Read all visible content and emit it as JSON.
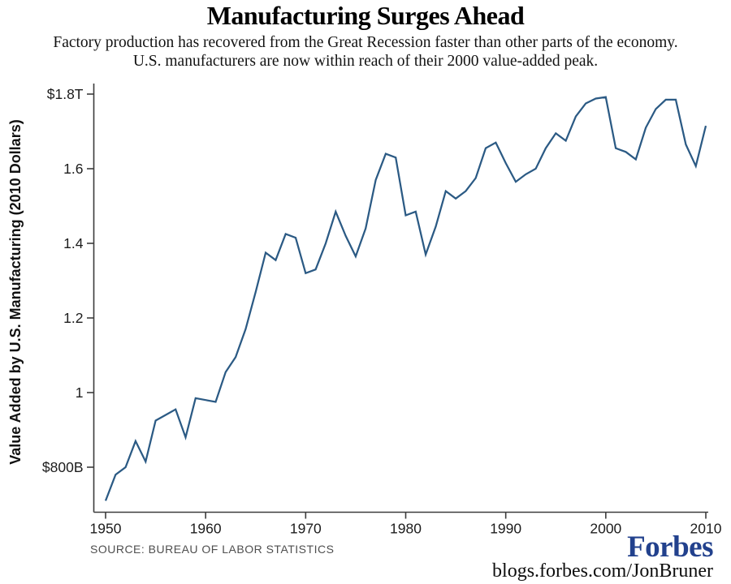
{
  "header": {
    "title": "Manufacturing Surges Ahead",
    "subtitle_line1": "Factory production has recovered from the Great Recession faster than other parts of the economy.",
    "subtitle_line2": "U.S. manufacturers are now within reach of their 2000 value-added peak."
  },
  "chart_data": {
    "type": "line",
    "title": "Manufacturing Surges Ahead",
    "xlabel": "",
    "ylabel": "Value Added by U.S. Manufacturing (2010 Dollars)",
    "units": "trillions of 2010 dollars",
    "grid": false,
    "legend": "none",
    "xlim": [
      1950,
      2010
    ],
    "ylim": [
      0.68,
      1.83
    ],
    "x_ticks": [
      1950,
      1960,
      1970,
      1980,
      1990,
      2000,
      2010
    ],
    "y_ticks": [
      {
        "value": 0.8,
        "label": "$800B"
      },
      {
        "value": 1.0,
        "label": "1"
      },
      {
        "value": 1.2,
        "label": "1.2"
      },
      {
        "value": 1.4,
        "label": "1.4"
      },
      {
        "value": 1.6,
        "label": "1.6"
      },
      {
        "value": 1.8,
        "label": "$1.8T"
      }
    ],
    "x": [
      1950,
      1951,
      1952,
      1953,
      1954,
      1955,
      1956,
      1957,
      1958,
      1959,
      1960,
      1961,
      1962,
      1963,
      1964,
      1965,
      1966,
      1967,
      1968,
      1969,
      1970,
      1971,
      1972,
      1973,
      1974,
      1975,
      1976,
      1977,
      1978,
      1979,
      1980,
      1981,
      1982,
      1983,
      1984,
      1985,
      1986,
      1987,
      1988,
      1989,
      1990,
      1991,
      1992,
      1993,
      1994,
      1995,
      1996,
      1997,
      1998,
      1999,
      2000,
      2001,
      2002,
      2003,
      2004,
      2005,
      2006,
      2007,
      2008,
      2009,
      2010
    ],
    "values": [
      0.71,
      0.78,
      0.8,
      0.87,
      0.815,
      0.925,
      0.94,
      0.955,
      0.88,
      0.985,
      0.98,
      0.975,
      1.055,
      1.095,
      1.17,
      1.27,
      1.375,
      1.355,
      1.425,
      1.415,
      1.32,
      1.33,
      1.4,
      1.485,
      1.42,
      1.365,
      1.44,
      1.57,
      1.64,
      1.63,
      1.475,
      1.485,
      1.37,
      1.445,
      1.54,
      1.52,
      1.54,
      1.575,
      1.655,
      1.67,
      1.615,
      1.565,
      1.585,
      1.6,
      1.655,
      1.695,
      1.675,
      1.74,
      1.775,
      1.788,
      1.792,
      1.655,
      1.645,
      1.625,
      1.71,
      1.76,
      1.785,
      1.785,
      1.665,
      1.607,
      1.715
    ],
    "series_name": "Value added by U.S. manufacturing"
  },
  "footer": {
    "source": "SOURCE: BUREAU OF LABOR STATISTICS",
    "brand": "Forbes",
    "credit_url": "blogs.forbes.com/JonBruner"
  },
  "colors": {
    "line": "#2B5A84",
    "axis": "#3C3C3C",
    "tick_text": "#1C1C1C",
    "axis_title_text": "#111111",
    "source_text": "#4F4F4F",
    "forbes_blue": "#22418D"
  }
}
